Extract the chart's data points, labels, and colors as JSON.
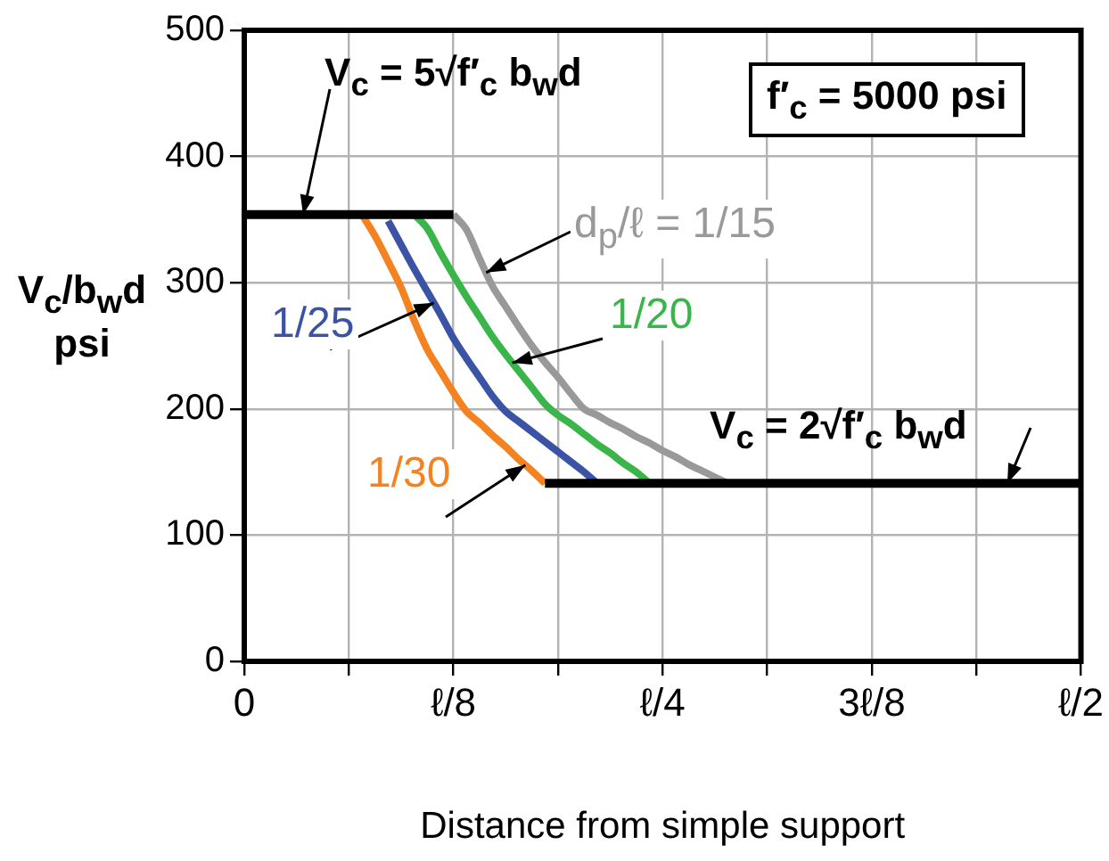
{
  "chart_data": {
    "type": "line",
    "xlabel": "Distance from simple support",
    "ylabel": "V$_{c}$/b$_{w}$d psi",
    "categories": [
      "0",
      null,
      null,
      null,
      null,
      null,
      null,
      null,
      null,
      null,
      null,
      null,
      null,
      null,
      null,
      null,
      "ℓ/8",
      null,
      null,
      null,
      null,
      null,
      null,
      null,
      null,
      null,
      null,
      null,
      null,
      null,
      null,
      null,
      "ℓ/4",
      null,
      null,
      null,
      null,
      null,
      null,
      null,
      null,
      null,
      null,
      null,
      null,
      null,
      null,
      null,
      "3ℓ/8",
      null,
      null,
      null,
      null,
      null,
      null,
      null,
      null,
      null,
      null,
      null,
      null,
      null,
      null,
      null,
      "ℓ/2"
    ],
    "ylim": [
      0,
      500
    ],
    "yticks": [
      0,
      100,
      200,
      300,
      400,
      500
    ],
    "grid": true,
    "legend": false,
    "series": [
      {
        "color": "#000000",
        "values": [
          354,
          354,
          354,
          354,
          354,
          354,
          354,
          354,
          354,
          354,
          354,
          354,
          354,
          354,
          354,
          354,
          354,
          null,
          null,
          null,
          null,
          null,
          null,
          null,
          null,
          null,
          null,
          null,
          null,
          null,
          null,
          null,
          null,
          null,
          null,
          null,
          null,
          null,
          null,
          null,
          null,
          null,
          null,
          null,
          null,
          null,
          null,
          null,
          null,
          null,
          null,
          null,
          null,
          null,
          null,
          null,
          null,
          null,
          null,
          null,
          null,
          null,
          null,
          null,
          null
        ]
      },
      {
        "color": "#000000",
        "values": [
          null,
          null,
          null,
          null,
          null,
          null,
          null,
          null,
          null,
          null,
          null,
          null,
          null,
          null,
          null,
          null,
          null,
          null,
          null,
          null,
          null,
          null,
          null,
          141,
          141,
          141,
          141,
          141,
          141,
          141,
          141,
          141,
          141,
          141,
          141,
          141,
          141,
          141,
          141,
          141,
          141,
          141,
          141,
          141,
          141,
          141,
          141,
          141,
          141,
          141,
          141,
          141,
          141,
          141,
          141,
          141,
          141,
          141,
          141,
          141,
          141,
          141,
          141,
          141,
          141
        ]
      },
      {
        "name": "1/30",
        "color": "#f58220",
        "values": [
          null,
          null,
          null,
          null,
          null,
          null,
          null,
          null,
          null,
          354,
          337,
          317,
          296,
          270,
          247,
          230,
          213,
          198,
          189,
          179,
          170,
          160,
          151,
          141,
          null,
          null,
          null,
          null,
          null,
          null,
          null,
          null,
          null,
          null,
          null,
          null,
          null,
          null,
          null,
          null,
          null,
          null,
          null,
          null,
          null,
          null,
          null,
          null,
          null,
          null,
          null,
          null,
          null,
          null,
          null,
          null,
          null,
          null,
          null,
          null,
          null,
          null,
          null,
          null,
          null
        ]
      },
      {
        "name": "1/25",
        "color": "#3a53a4",
        "values": [
          null,
          null,
          null,
          null,
          null,
          null,
          null,
          null,
          null,
          null,
          null,
          349,
          330,
          311,
          293,
          275,
          256,
          240,
          225,
          210,
          198,
          190,
          182,
          174,
          166,
          158,
          150,
          141,
          null,
          null,
          null,
          null,
          null,
          null,
          null,
          null,
          null,
          null,
          null,
          null,
          null,
          null,
          null,
          null,
          null,
          null,
          null,
          null,
          null,
          null,
          null,
          null,
          null,
          null,
          null,
          null,
          null,
          null,
          null,
          null,
          null,
          null,
          null,
          null,
          null
        ]
      },
      {
        "name": "1/20",
        "color": "#3ab54a",
        "values": [
          null,
          null,
          null,
          null,
          null,
          null,
          null,
          null,
          null,
          null,
          null,
          null,
          null,
          354,
          343,
          324,
          306,
          289,
          273,
          257,
          243,
          230,
          217,
          204,
          195,
          188,
          180,
          172,
          165,
          157,
          150,
          141,
          null,
          null,
          null,
          null,
          null,
          null,
          null,
          null,
          null,
          null,
          null,
          null,
          null,
          null,
          null,
          null,
          null,
          null,
          null,
          null,
          null,
          null,
          null,
          null,
          null,
          null,
          null,
          null,
          null,
          null,
          null,
          null,
          null
        ]
      },
      {
        "name": "d$_{p}$/ℓ = 1/15",
        "color": "#999999",
        "values": [
          null,
          null,
          null,
          null,
          null,
          null,
          null,
          null,
          null,
          null,
          null,
          null,
          null,
          null,
          null,
          null,
          354,
          342,
          319,
          297,
          281,
          265,
          250,
          237,
          225,
          212,
          200,
          195,
          189,
          184,
          178,
          173,
          167,
          162,
          156,
          151,
          146,
          141,
          null,
          null,
          null,
          null,
          null,
          null,
          null,
          null,
          null,
          null,
          null,
          null,
          null,
          null,
          null,
          null,
          null,
          null,
          null,
          null,
          null,
          null,
          null,
          null,
          null,
          null,
          null
        ]
      }
    ],
    "annotations": [
      {
        "text": "V$_{c}$ = 5√f′$_{c}$ b$_{w}$d",
        "y": 354
      },
      "f′$_{c}$ = 5000 psi",
      {
        "text": "V$_{c}$ = 2√f′$_{c}$ b$_{w}$d",
        "y": 141
      }
    ]
  }
}
